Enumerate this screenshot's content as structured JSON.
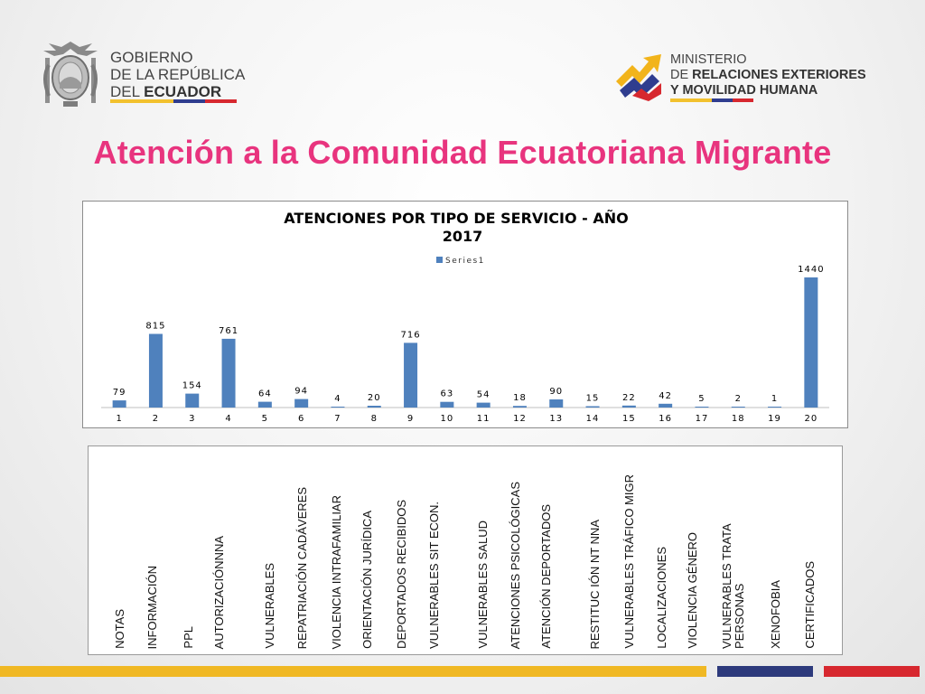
{
  "header": {
    "gov_line1": "GOBIERNO",
    "gov_line2": "DE LA REPÚBLICA",
    "gov_line3_regular": "DEL ",
    "gov_line3_bold": "ECUADOR",
    "ministry_line1": "MINISTERIO",
    "ministry_line2_regular": "DE ",
    "ministry_line2_bold": "RELACIONES EXTERIORES",
    "ministry_line3": "Y MOVILIDAD HUMANA",
    "crest_icon": "ecuador-coat-of-arms-icon",
    "ministry_icon": "ministry-arrows-icon"
  },
  "page_title": "Atención a la Comunidad Ecuatoriana Migrante",
  "chart_data": {
    "type": "bar",
    "title_line1": "ATENCIONES POR TIPO DE SERVICIO - AÑO",
    "title_line2": "2017",
    "legend_position": "top",
    "categories": [
      "1",
      "2",
      "3",
      "4",
      "5",
      "6",
      "7",
      "8",
      "9",
      "10",
      "11",
      "12",
      "13",
      "14",
      "15",
      "16",
      "17",
      "18",
      "19",
      "20"
    ],
    "series": [
      {
        "name": "Series1",
        "color": "#4f81bd",
        "values": [
          79,
          815,
          154,
          761,
          64,
          94,
          4,
          20,
          716,
          63,
          54,
          18,
          90,
          15,
          22,
          42,
          5,
          2,
          1,
          1440
        ]
      }
    ],
    "ylim": [
      0,
      1700
    ],
    "grid": false
  },
  "category_labels": [
    "NOTAS",
    "INFORMACIÓN",
    "PPL",
    "AUTORIZACIÓNNNA",
    "VULNERABLES",
    "REPATRIACIÓN CADÁVERES",
    "VIOLENCIA INTRAFAMILIAR",
    "ORIENTACIÓN JURÍDICA",
    "DEPORTADOS RECIBIDOS",
    "VULNERABLES SIT ECON.",
    "VULNERABLES SALUD",
    "ATENCIONES PSICOLÓGICAS",
    "ATENCIÓN DEPORTADOS",
    "RESTITUC IÓN NT NNA",
    "VULNERABLES TRÁFICO MIGR",
    "LOCALIZACIONES",
    "VIOLENCIA GÉNERO",
    "VULNERABLES TRATA PERSONAS",
    "XENOFOBIA",
    "CERTIFICADOS"
  ],
  "footer_colors": {
    "yellow": "#f0b824",
    "blue": "#2d3a7c",
    "red": "#d7282f"
  }
}
